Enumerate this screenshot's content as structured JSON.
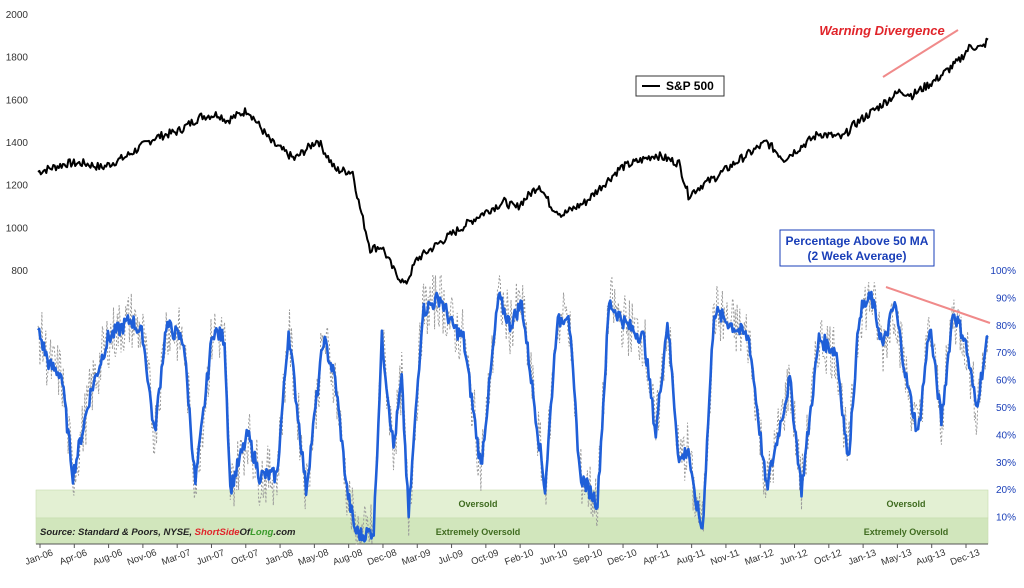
{
  "chart_data": {
    "type": "line",
    "left_axis": {
      "ticks": [
        800,
        1000,
        1200,
        1400,
        1600,
        1800,
        2000
      ],
      "range": [
        600,
        2000
      ]
    },
    "right_axis": {
      "ticks": [
        "10%",
        "20%",
        "30%",
        "40%",
        "50%",
        "60%",
        "70%",
        "80%",
        "90%",
        "100%"
      ],
      "range": [
        0,
        100
      ]
    },
    "x_tick_labels": [
      "Jan-06",
      "Apr-06",
      "Aug-06",
      "Nov-06",
      "Mar-07",
      "Jun-07",
      "Oct-07",
      "Jan-08",
      "May-08",
      "Aug-08",
      "Dec-08",
      "Mar-09",
      "Jul-09",
      "Oct-09",
      "Feb-10",
      "Jun-10",
      "Sep-10",
      "Dec-10",
      "Apr-11",
      "Aug-11",
      "Nov-11",
      "Mar-12",
      "Jun-12",
      "Oct-12",
      "Jan-13",
      "May-13",
      "Aug-13",
      "Dec-13"
    ],
    "series": [
      {
        "name": "S&P 500",
        "axis": "left",
        "color": "#000000",
        "x": [
          2006.0,
          2006.25,
          2006.4,
          2006.55,
          2006.75,
          2007.0,
          2007.2,
          2007.4,
          2007.55,
          2007.62,
          2007.8,
          2008.0,
          2008.2,
          2008.4,
          2008.55,
          2008.7,
          2008.75,
          2008.85,
          2008.95,
          2009.05,
          2009.15,
          2009.25,
          2009.5,
          2009.8,
          2010.0,
          2010.1,
          2010.3,
          2010.4,
          2010.5,
          2010.7,
          2011.0,
          2011.3,
          2011.5,
          2011.58,
          2011.7,
          2011.8,
          2012.0,
          2012.25,
          2012.4,
          2012.5,
          2012.7,
          2012.9,
          2013.0,
          2013.2,
          2013.4,
          2013.5,
          2013.7,
          2013.9,
          2014.0,
          2014.1,
          2014.15
        ],
        "values": [
          1260,
          1300,
          1300,
          1280,
          1330,
          1420,
          1450,
          1520,
          1530,
          1500,
          1550,
          1400,
          1320,
          1410,
          1270,
          1260,
          1120,
          900,
          910,
          800,
          730,
          850,
          950,
          1060,
          1120,
          1090,
          1200,
          1100,
          1060,
          1120,
          1280,
          1340,
          1300,
          1150,
          1200,
          1230,
          1310,
          1400,
          1320,
          1360,
          1440,
          1420,
          1480,
          1560,
          1640,
          1620,
          1690,
          1780,
          1850,
          1840,
          1880
        ]
      },
      {
        "name": "Percentage Above 50 MA (2 Week Average)",
        "axis": "right",
        "color": "#1f5fd8",
        "x": [
          2006.0,
          2006.1,
          2006.2,
          2006.3,
          2006.45,
          2006.6,
          2006.8,
          2006.9,
          2007.0,
          2007.1,
          2007.25,
          2007.35,
          2007.5,
          2007.6,
          2007.65,
          2007.8,
          2007.9,
          2008.05,
          2008.15,
          2008.3,
          2008.45,
          2008.55,
          2008.65,
          2008.72,
          2008.78,
          2008.88,
          2008.95,
          2009.05,
          2009.12,
          2009.18,
          2009.3,
          2009.45,
          2009.55,
          2009.65,
          2009.8,
          2009.95,
          2010.05,
          2010.15,
          2010.35,
          2010.45,
          2010.55,
          2010.65,
          2010.8,
          2010.9,
          2011.05,
          2011.2,
          2011.3,
          2011.4,
          2011.5,
          2011.58,
          2011.62,
          2011.7,
          2011.8,
          2011.95,
          2012.1,
          2012.25,
          2012.35,
          2012.45,
          2012.55,
          2012.7,
          2012.85,
          2012.95,
          2013.05,
          2013.15,
          2013.25,
          2013.35,
          2013.45,
          2013.55,
          2013.65,
          2013.75,
          2013.85,
          2013.95,
          2014.05,
          2014.15
        ],
        "values": [
          78,
          65,
          62,
          25,
          55,
          75,
          82,
          76,
          40,
          80,
          74,
          22,
          78,
          75,
          20,
          40,
          25,
          25,
          78,
          20,
          75,
          60,
          20,
          5,
          3,
          5,
          75,
          35,
          60,
          10,
          85,
          90,
          80,
          75,
          28,
          90,
          80,
          88,
          20,
          80,
          85,
          25,
          15,
          88,
          80,
          75,
          40,
          82,
          30,
          35,
          20,
          5,
          85,
          80,
          75,
          20,
          40,
          60,
          20,
          75,
          70,
          30,
          85,
          90,
          72,
          88,
          60,
          40,
          80,
          45,
          85,
          75,
          50,
          76
        ]
      }
    ],
    "legend": {
      "label": "S&P 500",
      "placement": "top-center"
    },
    "annotations": {
      "warning": "Warning Divergence",
      "pct_title_line1": "Percentage Above 50 MA",
      "pct_title_line2": "(2 Week Average)",
      "oversold": "Oversold",
      "extremely_oversold": "Extremely Oversold",
      "source_prefix": "Source: Standard & Poors, NYSE, ",
      "source_brand_short": "Short",
      "source_brand_side": "Side",
      "source_brand_of": "Of",
      "source_brand_long": "Long",
      "source_brand_suffix": ".com"
    },
    "colors": {
      "spx": "#000000",
      "pct": "#1f5fd8",
      "pct_dotted": "#999999",
      "warning": "#e0242a",
      "trendline": "#f08080",
      "zone": "#d9ecc6",
      "brand_green": "#3a9a2a"
    },
    "grid": false
  }
}
